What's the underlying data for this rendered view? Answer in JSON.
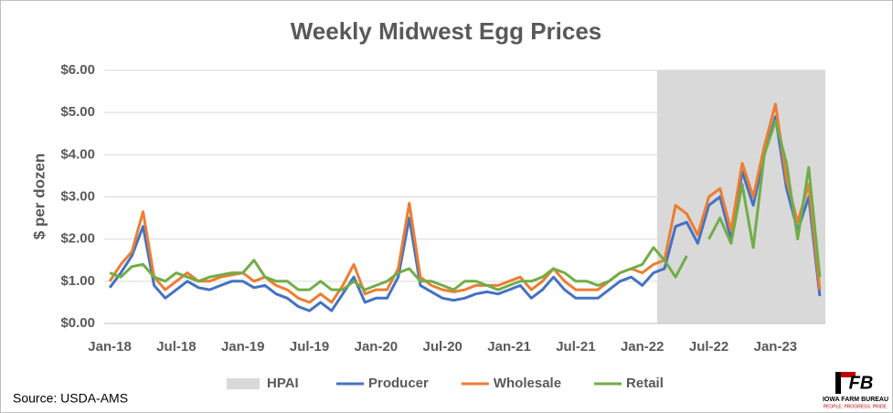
{
  "chart_data": {
    "type": "line",
    "title": "Weekly Midwest Egg Prices",
    "ylabel": "$ per dozen",
    "source": "Source: USDA-AMS",
    "logo": {
      "mark": "FB",
      "name": "IOWA FARM BUREAU",
      "tagline": "PEOPLE. PROGRESS. PRIDE."
    },
    "categories": [
      "Jan-18",
      null,
      null,
      null,
      null,
      null,
      "Jul-18",
      null,
      null,
      null,
      null,
      null,
      "Jan-19",
      null,
      null,
      null,
      null,
      null,
      "Jul-19",
      null,
      null,
      null,
      null,
      null,
      "Jan-20",
      null,
      null,
      null,
      null,
      null,
      "Jul-20",
      null,
      null,
      null,
      null,
      null,
      "Jan-21",
      null,
      null,
      null,
      null,
      null,
      "Jul-21",
      null,
      null,
      null,
      null,
      null,
      "Jan-22",
      null,
      null,
      null,
      null,
      null,
      "Jul-22",
      null,
      null,
      null,
      null,
      null,
      "Jan-23",
      null,
      null,
      null,
      null
    ],
    "shade": {
      "name": "HPAI",
      "color": "#d9d9d9",
      "from": 49,
      "to": 64
    },
    "series": [
      {
        "name": "Producer",
        "color": "#4472c4",
        "values": [
          0.85,
          1.2,
          1.6,
          2.3,
          0.9,
          0.6,
          0.8,
          1.0,
          0.85,
          0.8,
          0.9,
          1.0,
          1.0,
          0.85,
          0.9,
          0.7,
          0.6,
          0.4,
          0.3,
          0.5,
          0.3,
          0.7,
          1.1,
          0.5,
          0.6,
          0.6,
          1.1,
          2.5,
          0.9,
          0.75,
          0.6,
          0.55,
          0.6,
          0.7,
          0.75,
          0.7,
          0.8,
          0.9,
          0.6,
          0.8,
          1.1,
          0.8,
          0.6,
          0.6,
          0.6,
          0.8,
          1.0,
          1.1,
          0.9,
          1.2,
          1.3,
          2.3,
          2.4,
          1.9,
          2.8,
          3.0,
          2.0,
          3.6,
          2.8,
          4.0,
          4.9,
          3.2,
          2.2,
          3.0,
          0.65
        ]
      },
      {
        "name": "Wholesale",
        "color": "#ed7d31",
        "values": [
          1.0,
          1.4,
          1.7,
          2.65,
          1.1,
          0.8,
          1.0,
          1.2,
          1.0,
          1.0,
          1.1,
          1.15,
          1.2,
          1.0,
          1.1,
          0.9,
          0.8,
          0.6,
          0.5,
          0.7,
          0.5,
          0.9,
          1.4,
          0.7,
          0.8,
          0.8,
          1.3,
          2.85,
          1.1,
          0.9,
          0.8,
          0.75,
          0.8,
          0.9,
          0.9,
          0.9,
          1.0,
          1.1,
          0.8,
          1.0,
          1.3,
          1.0,
          0.8,
          0.8,
          0.8,
          1.0,
          1.2,
          1.3,
          1.2,
          1.4,
          1.5,
          2.8,
          2.6,
          2.1,
          3.0,
          3.2,
          2.2,
          3.8,
          3.0,
          4.2,
          5.2,
          3.4,
          2.4,
          3.3,
          0.8
        ]
      },
      {
        "name": "Retail",
        "color": "#70ad47",
        "values": [
          1.2,
          1.1,
          1.35,
          1.4,
          1.1,
          1.0,
          1.2,
          1.1,
          1.0,
          1.1,
          1.15,
          1.2,
          1.2,
          1.5,
          1.1,
          1.0,
          1.0,
          0.8,
          0.8,
          1.0,
          0.8,
          0.8,
          1.0,
          0.8,
          0.9,
          1.0,
          1.2,
          1.3,
          1.0,
          1.0,
          0.9,
          0.8,
          1.0,
          1.0,
          0.9,
          0.8,
          0.9,
          1.0,
          1.0,
          1.1,
          1.3,
          1.2,
          1.0,
          1.0,
          0.9,
          1.0,
          1.2,
          1.3,
          1.4,
          1.8,
          1.5,
          1.1,
          1.6,
          null,
          2.0,
          2.5,
          1.9,
          3.3,
          1.8,
          4.0,
          4.8,
          3.8,
          2.0,
          3.7,
          1.1
        ]
      }
    ],
    "ylim": [
      0,
      6
    ],
    "yticks": [
      {
        "value": 0,
        "label": "$0.00"
      },
      {
        "value": 1,
        "label": "$1.00"
      },
      {
        "value": 2,
        "label": "$2.00"
      },
      {
        "value": 3,
        "label": "$3.00"
      },
      {
        "value": 4,
        "label": "$4.00"
      },
      {
        "value": 5,
        "label": "$5.00"
      },
      {
        "value": 6,
        "label": "$6.00"
      }
    ],
    "grid": true,
    "legend": "bottom"
  }
}
